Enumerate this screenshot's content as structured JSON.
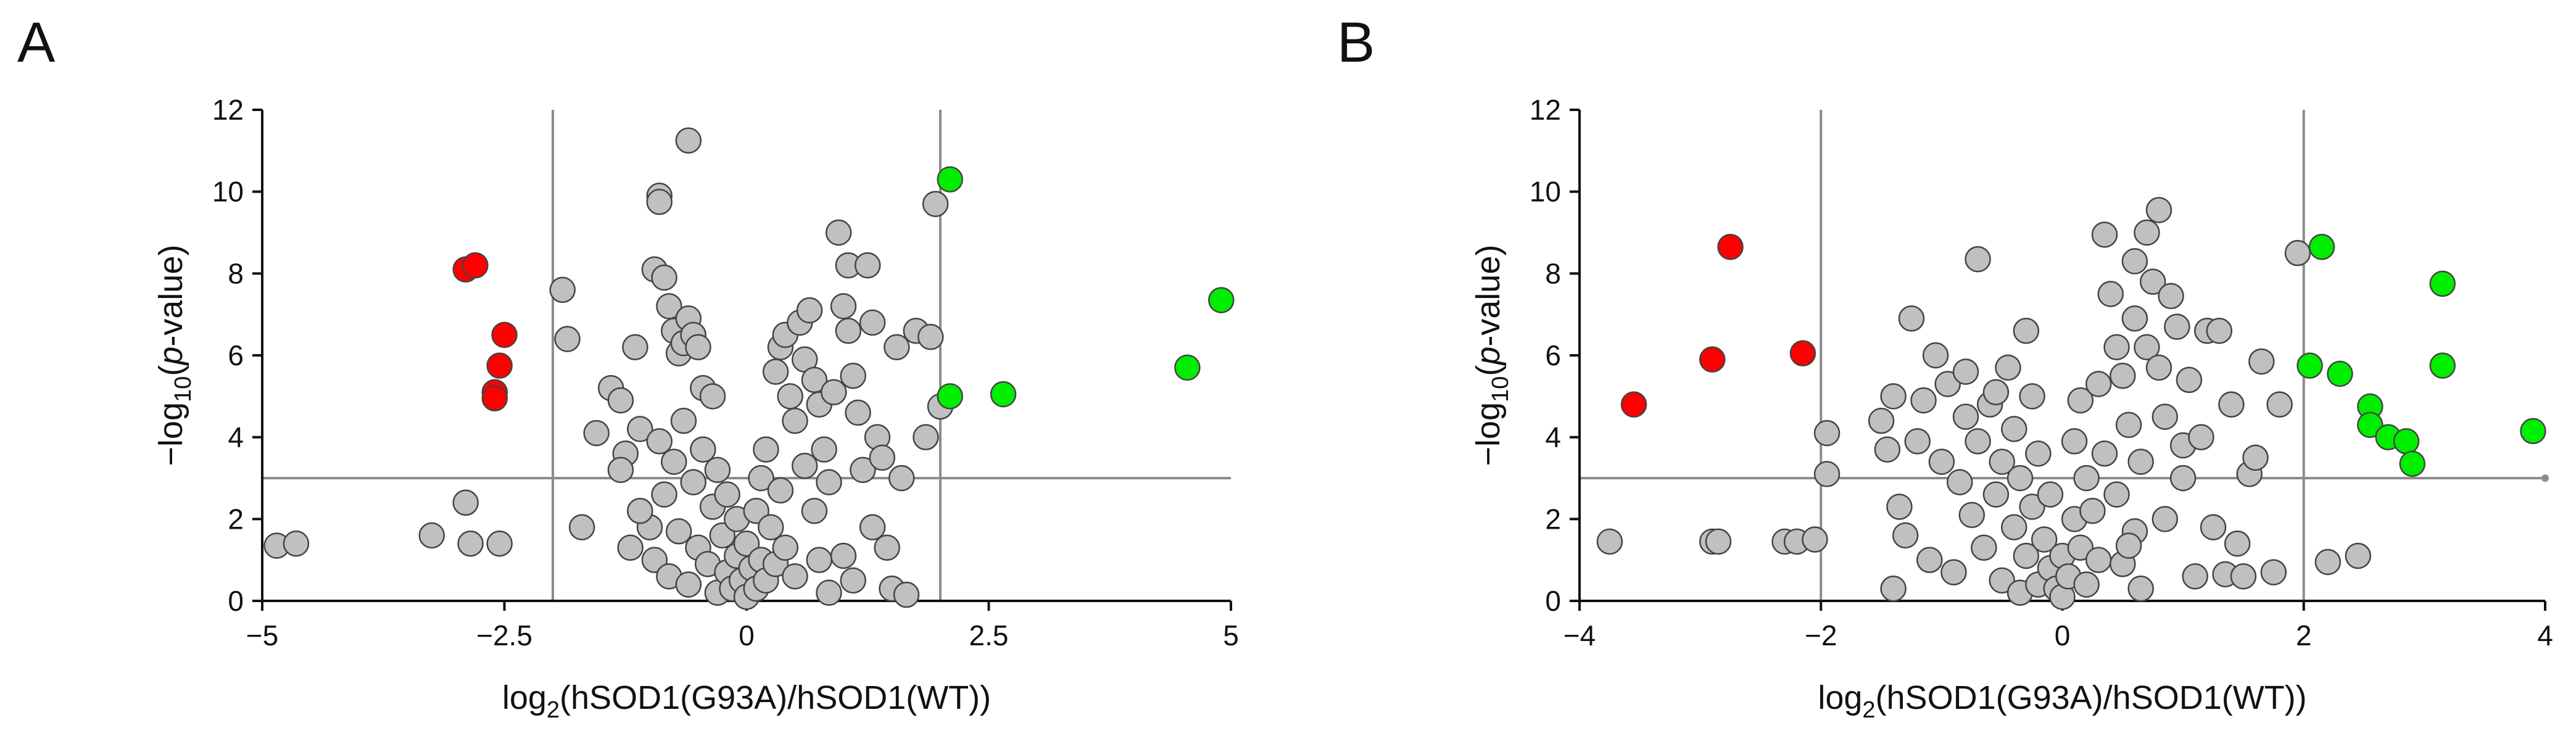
{
  "chart_data": [
    {
      "type": "scatter",
      "panel_label": "A",
      "title": "",
      "xlabel_prefix": "log",
      "xlabel_sub": "2",
      "xlabel_rest": "(hSOD1(G93A)/hSOD1(WT))",
      "ylabel_pre": "−log",
      "ylabel_sub": "10",
      "ylabel_open": "(",
      "ylabel_italic": "p",
      "ylabel_post": "-value)",
      "xlim": [
        -5,
        5
      ],
      "ylim": [
        0,
        12
      ],
      "xticks": [
        -5,
        -2.5,
        0,
        2.5,
        5
      ],
      "xtick_labels": [
        "−5",
        "−2.5",
        "0",
        "2.5",
        "5"
      ],
      "yticks": [
        0,
        2,
        4,
        6,
        8,
        10,
        12
      ],
      "ytick_labels": [
        "0",
        "2",
        "4",
        "6",
        "8",
        "10",
        "12"
      ],
      "thresholds": {
        "x": [
          -2,
          2
        ],
        "y": 3
      },
      "colors": {
        "down": "#ff0000",
        "up": "#00ee00",
        "ns": "#c0c0c0",
        "edge": "#444444",
        "line": "#8c8c8c"
      },
      "series": [
        {
          "name": "down",
          "points": [
            [
              -2.9,
              8.1
            ],
            [
              -2.8,
              8.2
            ],
            [
              -2.5,
              6.5
            ],
            [
              -2.55,
              5.75
            ],
            [
              -2.6,
              5.1
            ],
            [
              -2.6,
              4.95
            ]
          ]
        },
        {
          "name": "up",
          "points": [
            [
              2.1,
              10.3
            ],
            [
              2.1,
              5.0
            ],
            [
              2.65,
              5.05
            ],
            [
              4.55,
              5.7
            ],
            [
              4.9,
              7.35
            ]
          ]
        },
        {
          "name": "ns",
          "points": [
            [
              -4.85,
              1.35
            ],
            [
              -4.65,
              1.4
            ],
            [
              -3.25,
              1.6
            ],
            [
              -2.9,
              2.4
            ],
            [
              -2.85,
              1.4
            ],
            [
              -2.55,
              1.4
            ],
            [
              -1.9,
              7.6
            ],
            [
              -1.85,
              6.4
            ],
            [
              -1.7,
              1.8
            ],
            [
              -1.55,
              4.1
            ],
            [
              -1.4,
              5.2
            ],
            [
              -1.3,
              4.9
            ],
            [
              -1.25,
              3.6
            ],
            [
              -1.15,
              6.2
            ],
            [
              -1.1,
              4.2
            ],
            [
              -1.0,
              1.8
            ],
            [
              -0.95,
              8.1
            ],
            [
              -0.9,
              9.9
            ],
            [
              -0.9,
              9.75
            ],
            [
              -0.85,
              7.9
            ],
            [
              -0.8,
              7.2
            ],
            [
              -0.75,
              6.6
            ],
            [
              -0.7,
              6.05
            ],
            [
              -0.65,
              6.3
            ],
            [
              -0.6,
              6.9
            ],
            [
              -0.6,
              11.25
            ],
            [
              -0.55,
              6.5
            ],
            [
              -0.5,
              6.2
            ],
            [
              -0.45,
              5.2
            ],
            [
              -0.35,
              5.0
            ],
            [
              -1.3,
              3.2
            ],
            [
              -1.2,
              1.3
            ],
            [
              -1.1,
              2.2
            ],
            [
              -0.95,
              1.0
            ],
            [
              -0.9,
              3.9
            ],
            [
              -0.85,
              2.6
            ],
            [
              -0.8,
              0.6
            ],
            [
              -0.75,
              3.4
            ],
            [
              -0.7,
              1.7
            ],
            [
              -0.65,
              4.4
            ],
            [
              -0.6,
              0.4
            ],
            [
              -0.55,
              2.9
            ],
            [
              -0.5,
              1.3
            ],
            [
              -0.45,
              3.7
            ],
            [
              -0.4,
              0.9
            ],
            [
              -0.35,
              2.3
            ],
            [
              -0.3,
              0.2
            ],
            [
              -0.3,
              3.2
            ],
            [
              -0.25,
              1.6
            ],
            [
              -0.2,
              0.7
            ],
            [
              -0.2,
              2.6
            ],
            [
              -0.15,
              0.3
            ],
            [
              -0.1,
              1.1
            ],
            [
              -0.1,
              2.0
            ],
            [
              -0.05,
              0.5
            ],
            [
              0.0,
              0.1
            ],
            [
              0.0,
              1.4
            ],
            [
              0.05,
              0.8
            ],
            [
              0.1,
              0.3
            ],
            [
              0.1,
              2.2
            ],
            [
              0.15,
              1.0
            ],
            [
              0.15,
              3.0
            ],
            [
              0.2,
              0.5
            ],
            [
              0.2,
              3.7
            ],
            [
              0.25,
              1.8
            ],
            [
              0.3,
              0.9
            ],
            [
              0.3,
              5.6
            ],
            [
              0.35,
              6.2
            ],
            [
              0.35,
              2.7
            ],
            [
              0.4,
              6.5
            ],
            [
              0.4,
              1.3
            ],
            [
              0.45,
              5.0
            ],
            [
              0.5,
              4.4
            ],
            [
              0.5,
              0.6
            ],
            [
              0.55,
              6.8
            ],
            [
              0.6,
              5.9
            ],
            [
              0.6,
              3.3
            ],
            [
              0.65,
              7.1
            ],
            [
              0.7,
              2.2
            ],
            [
              0.7,
              5.4
            ],
            [
              0.75,
              1.0
            ],
            [
              0.75,
              4.8
            ],
            [
              0.8,
              3.7
            ],
            [
              0.85,
              2.9
            ],
            [
              0.9,
              5.1
            ],
            [
              0.95,
              9.0
            ],
            [
              1.0,
              7.2
            ],
            [
              1.05,
              8.2
            ],
            [
              1.05,
              6.6
            ],
            [
              1.1,
              5.5
            ],
            [
              1.15,
              4.6
            ],
            [
              1.2,
              3.2
            ],
            [
              1.25,
              8.2
            ],
            [
              1.3,
              6.8
            ],
            [
              1.35,
              4.0
            ],
            [
              1.4,
              3.5
            ],
            [
              1.45,
              1.3
            ],
            [
              1.5,
              0.3
            ],
            [
              1.55,
              6.2
            ],
            [
              1.6,
              3.0
            ],
            [
              1.65,
              0.15
            ],
            [
              1.75,
              6.6
            ],
            [
              1.85,
              4.0
            ],
            [
              1.9,
              6.45
            ],
            [
              1.95,
              9.7
            ],
            [
              2.0,
              4.75
            ],
            [
              1.0,
              1.1
            ],
            [
              1.1,
              0.5
            ],
            [
              1.3,
              1.8
            ],
            [
              0.85,
              0.2
            ]
          ]
        }
      ]
    },
    {
      "type": "scatter",
      "panel_label": "B",
      "title": "",
      "xlabel_prefix": "log",
      "xlabel_sub": "2",
      "xlabel_rest": "(hSOD1(G93A)/hSOD1(WT))",
      "ylabel_pre": "−log",
      "ylabel_sub": "10",
      "ylabel_open": "(",
      "ylabel_italic": "p",
      "ylabel_post": "-value)",
      "xlim": [
        -4,
        4
      ],
      "ylim": [
        0,
        12
      ],
      "xticks": [
        -4,
        -2,
        0,
        2,
        4
      ],
      "xtick_labels": [
        "−4",
        "−2",
        "0",
        "2",
        "4"
      ],
      "yticks": [
        0,
        2,
        4,
        6,
        8,
        10,
        12
      ],
      "ytick_labels": [
        "0",
        "2",
        "4",
        "6",
        "8",
        "10",
        "12"
      ],
      "thresholds": {
        "x": [
          -2,
          2
        ],
        "y": 3
      },
      "colors": {
        "down": "#ff0000",
        "up": "#00ee00",
        "ns": "#c0c0c0",
        "edge": "#444444",
        "line": "#8c8c8c"
      },
      "series": [
        {
          "name": "down",
          "points": [
            [
              -3.55,
              4.8
            ],
            [
              -2.9,
              5.9
            ],
            [
              -2.75,
              8.65
            ],
            [
              -2.15,
              6.05
            ]
          ]
        },
        {
          "name": "up",
          "points": [
            [
              2.05,
              5.75
            ],
            [
              2.15,
              8.65
            ],
            [
              2.3,
              5.55
            ],
            [
              2.55,
              4.75
            ],
            [
              2.55,
              4.3
            ],
            [
              2.7,
              4.0
            ],
            [
              2.85,
              3.9
            ],
            [
              2.9,
              3.35
            ],
            [
              3.15,
              7.75
            ],
            [
              3.15,
              5.75
            ],
            [
              3.9,
              4.15
            ]
          ]
        },
        {
          "name": "ns",
          "points": [
            [
              -3.75,
              1.45
            ],
            [
              -2.9,
              1.45
            ],
            [
              -2.85,
              1.45
            ],
            [
              -2.3,
              1.45
            ],
            [
              -2.2,
              1.45
            ],
            [
              -2.05,
              1.5
            ],
            [
              -1.95,
              4.1
            ],
            [
              -1.95,
              3.1
            ],
            [
              -1.5,
              4.4
            ],
            [
              -1.45,
              3.7
            ],
            [
              -1.4,
              5.0
            ],
            [
              -1.4,
              0.3
            ],
            [
              -1.35,
              2.3
            ],
            [
              -1.3,
              1.6
            ],
            [
              -1.25,
              6.9
            ],
            [
              -1.2,
              3.9
            ],
            [
              -1.15,
              4.9
            ],
            [
              -1.1,
              1.0
            ],
            [
              -1.05,
              6.0
            ],
            [
              -1.0,
              3.4
            ],
            [
              -0.95,
              5.3
            ],
            [
              -0.9,
              0.7
            ],
            [
              -0.85,
              2.9
            ],
            [
              -0.8,
              4.5
            ],
            [
              -0.8,
              5.6
            ],
            [
              -0.75,
              2.1
            ],
            [
              -0.7,
              8.35
            ],
            [
              -0.7,
              3.9
            ],
            [
              -0.65,
              1.3
            ],
            [
              -0.6,
              4.8
            ],
            [
              -0.55,
              5.1
            ],
            [
              -0.55,
              2.6
            ],
            [
              -0.5,
              0.5
            ],
            [
              -0.5,
              3.4
            ],
            [
              -0.45,
              5.7
            ],
            [
              -0.4,
              1.8
            ],
            [
              -0.4,
              4.2
            ],
            [
              -0.35,
              0.2
            ],
            [
              -0.35,
              3.0
            ],
            [
              -0.3,
              6.6
            ],
            [
              -0.3,
              1.1
            ],
            [
              -0.25,
              5.0
            ],
            [
              -0.25,
              2.3
            ],
            [
              -0.2,
              0.4
            ],
            [
              -0.2,
              3.6
            ],
            [
              -0.15,
              1.5
            ],
            [
              -0.1,
              0.8
            ],
            [
              -0.1,
              2.6
            ],
            [
              -0.05,
              0.3
            ],
            [
              0.0,
              1.1
            ],
            [
              0.0,
              0.1
            ],
            [
              0.05,
              0.6
            ],
            [
              0.1,
              2.0
            ],
            [
              0.1,
              3.9
            ],
            [
              0.15,
              1.3
            ],
            [
              0.15,
              4.9
            ],
            [
              0.2,
              0.4
            ],
            [
              0.2,
              3.0
            ],
            [
              0.25,
              2.2
            ],
            [
              0.3,
              5.3
            ],
            [
              0.3,
              1.0
            ],
            [
              0.35,
              8.95
            ],
            [
              0.35,
              3.6
            ],
            [
              0.4,
              7.5
            ],
            [
              0.45,
              6.2
            ],
            [
              0.45,
              2.6
            ],
            [
              0.5,
              5.5
            ],
            [
              0.5,
              0.9
            ],
            [
              0.55,
              4.3
            ],
            [
              0.6,
              8.3
            ],
            [
              0.6,
              6.9
            ],
            [
              0.6,
              1.7
            ],
            [
              0.65,
              3.4
            ],
            [
              0.7,
              9.0
            ],
            [
              0.7,
              6.2
            ],
            [
              0.75,
              7.8
            ],
            [
              0.8,
              9.55
            ],
            [
              0.8,
              5.7
            ],
            [
              0.85,
              4.5
            ],
            [
              0.85,
              2.0
            ],
            [
              0.9,
              7.45
            ],
            [
              0.95,
              6.7
            ],
            [
              1.0,
              3.8
            ],
            [
              1.0,
              3.0
            ],
            [
              1.05,
              5.4
            ],
            [
              1.1,
              0.6
            ],
            [
              1.15,
              4.0
            ],
            [
              1.2,
              6.6
            ],
            [
              1.3,
              6.6
            ],
            [
              1.35,
              0.65
            ],
            [
              1.4,
              4.8
            ],
            [
              1.45,
              1.4
            ],
            [
              1.55,
              3.1
            ],
            [
              1.6,
              3.5
            ],
            [
              1.65,
              5.85
            ],
            [
              1.75,
              0.7
            ],
            [
              1.8,
              4.8
            ],
            [
              1.95,
              8.5
            ],
            [
              2.2,
              0.95
            ],
            [
              2.45,
              1.1
            ],
            [
              0.65,
              0.3
            ],
            [
              0.55,
              1.35
            ],
            [
              1.25,
              1.8
            ],
            [
              1.5,
              0.6
            ]
          ]
        }
      ]
    }
  ]
}
